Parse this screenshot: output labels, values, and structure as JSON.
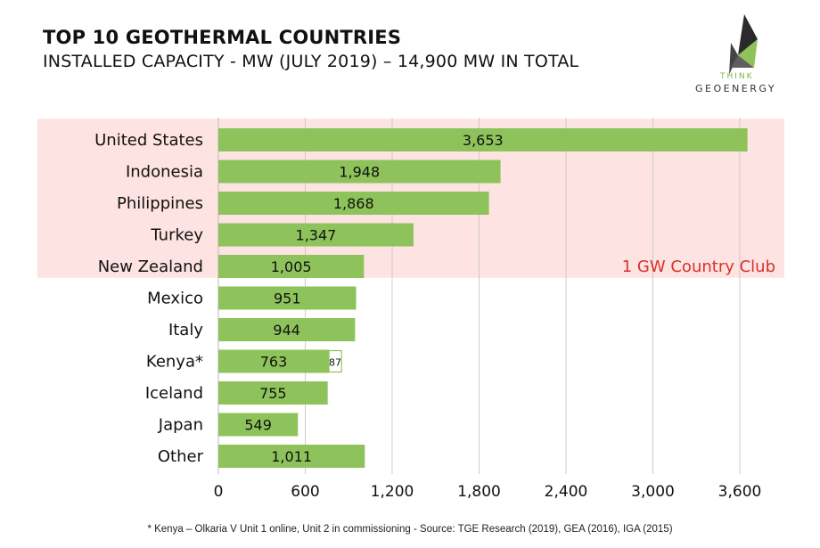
{
  "header": {
    "title": "TOP 10 GEOTHERMAL COUNTRIES",
    "subtitle": "INSTALLED CAPACITY - MW (JULY 2019) – 14,900 MW IN TOTAL"
  },
  "logo": {
    "line1": "THINK",
    "line2": "GEOENERGY",
    "icon": "triangle-logo-icon"
  },
  "chart_data": {
    "type": "bar",
    "orientation": "horizontal",
    "categories": [
      "United States",
      "Indonesia",
      "Philippines",
      "Turkey",
      "New Zealand",
      "Mexico",
      "Italy",
      "Kenya*",
      "Iceland",
      "Japan",
      "Other"
    ],
    "values": [
      3653,
      1948,
      1868,
      1347,
      1005,
      951,
      944,
      763,
      755,
      549,
      1011
    ],
    "value_labels": [
      "3,653",
      "1,948",
      "1,868",
      "1,347",
      "1,005",
      "951",
      "944",
      "763",
      "755",
      "549",
      "1,011"
    ],
    "extra_segment": {
      "category": "Kenya*",
      "value": 87,
      "label": "87"
    },
    "xlim": [
      0,
      3600
    ],
    "xticks": [
      0,
      600,
      1200,
      1800,
      2400,
      3000,
      3600
    ],
    "xtick_labels": [
      "0",
      "600",
      "1,200",
      "1,800",
      "2,400",
      "3,000",
      "3,600"
    ],
    "grid": true,
    "highlight": {
      "label": "1 GW Country Club",
      "categories": [
        "United States",
        "Indonesia",
        "Philippines",
        "Turkey",
        "New Zealand"
      ]
    },
    "colors": {
      "bar": "#8dc35a",
      "highlight_bg": "#fde3e1",
      "highlight_text": "#d9312b",
      "grid": "#cccccc"
    }
  },
  "footnote": "* Kenya – Olkaria V Unit 1 online, Unit 2 in commissioning -  Source: TGE Research (2019), GEA (2016), IGA (2015)"
}
